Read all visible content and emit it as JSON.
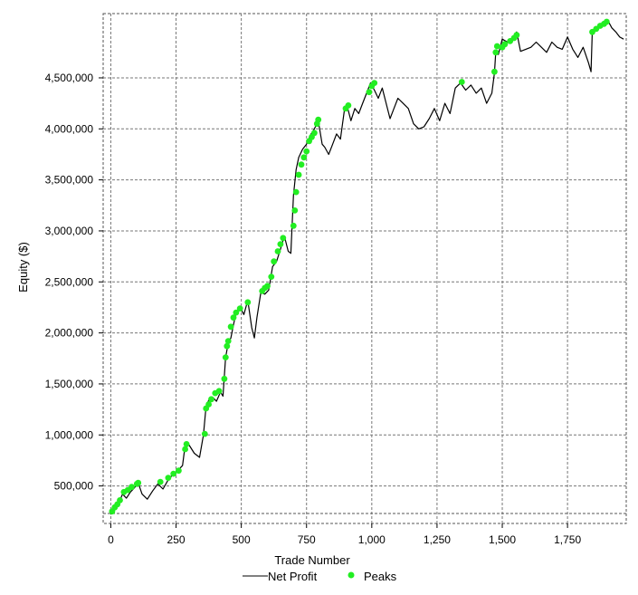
{
  "chart_data": {
    "type": "line",
    "xlabel": "Trade Number",
    "ylabel": "Equity ($)",
    "xlim": [
      -5,
      1975
    ],
    "ylim": [
      230000,
      5130000
    ],
    "x_ticks": [
      0,
      250,
      500,
      750,
      1000,
      1250,
      1500,
      1750
    ],
    "x_tick_labels": [
      "0",
      "250",
      "500",
      "750",
      "1,000",
      "1,250",
      "1,500",
      "1,750"
    ],
    "y_ticks": [
      500000,
      1000000,
      1500000,
      2000000,
      2500000,
      3000000,
      3500000,
      4000000,
      4500000
    ],
    "y_tick_labels": [
      "500,000",
      "1,000,000",
      "1,500,000",
      "2,000,000",
      "2,500,000",
      "3,000,000",
      "3,500,000",
      "4,000,000",
      "4,500,000"
    ],
    "grid": true,
    "legend_position": "bottom",
    "series": [
      {
        "name": "Net Profit",
        "type": "line",
        "color": "#000000",
        "x": [
          0,
          15,
          30,
          45,
          60,
          75,
          90,
          105,
          120,
          140,
          160,
          180,
          200,
          220,
          240,
          260,
          275,
          285,
          300,
          320,
          340,
          355,
          365,
          375,
          390,
          405,
          420,
          430,
          440,
          450,
          460,
          470,
          480,
          495,
          510,
          525,
          540,
          550,
          560,
          575,
          590,
          605,
          620,
          635,
          650,
          665,
          680,
          690,
          700,
          710,
          720,
          735,
          750,
          765,
          780,
          795,
          810,
          820,
          835,
          850,
          865,
          880,
          895,
          905,
          920,
          935,
          950,
          965,
          980,
          995,
          1010,
          1025,
          1040,
          1055,
          1070,
          1085,
          1100,
          1120,
          1140,
          1160,
          1180,
          1200,
          1220,
          1240,
          1260,
          1280,
          1300,
          1320,
          1340,
          1360,
          1380,
          1400,
          1420,
          1440,
          1460,
          1470,
          1475,
          1485,
          1500,
          1520,
          1540,
          1555,
          1570,
          1590,
          1610,
          1630,
          1650,
          1670,
          1690,
          1710,
          1730,
          1750,
          1770,
          1790,
          1810,
          1830,
          1840,
          1845,
          1860,
          1875,
          1890,
          1905,
          1920,
          1935,
          1950,
          1965
        ],
        "y": [
          220000,
          300000,
          330000,
          420000,
          380000,
          440000,
          480000,
          530000,
          420000,
          370000,
          450000,
          520000,
          470000,
          560000,
          620000,
          660000,
          700000,
          900000,
          900000,
          820000,
          780000,
          1000000,
          1280000,
          1340000,
          1370000,
          1330000,
          1420000,
          1380000,
          1760000,
          1900000,
          1950000,
          2080000,
          2200000,
          2250000,
          2180000,
          2320000,
          2050000,
          1950000,
          2150000,
          2400000,
          2380000,
          2420000,
          2650000,
          2700000,
          2820000,
          2950000,
          2800000,
          2780000,
          3350000,
          3600000,
          3720000,
          3800000,
          3850000,
          3940000,
          4000000,
          4080000,
          3850000,
          3820000,
          3750000,
          3850000,
          3950000,
          3900000,
          4180000,
          4230000,
          4080000,
          4200000,
          4150000,
          4250000,
          4350000,
          4450000,
          4380000,
          4300000,
          4400000,
          4250000,
          4100000,
          4200000,
          4300000,
          4250000,
          4200000,
          4050000,
          4000000,
          4020000,
          4100000,
          4200000,
          4080000,
          4250000,
          4150000,
          4400000,
          4450000,
          4380000,
          4430000,
          4350000,
          4400000,
          4250000,
          4350000,
          4550000,
          4750000,
          4730000,
          4880000,
          4850000,
          4900000,
          4950000,
          4760000,
          4780000,
          4800000,
          4850000,
          4800000,
          4750000,
          4850000,
          4800000,
          4780000,
          4900000,
          4780000,
          4700000,
          4800000,
          4650000,
          4560000,
          4960000,
          4990000,
          5020000,
          5050000,
          5060000,
          4990000,
          4950000,
          4900000,
          4880000
        ]
      },
      {
        "name": "Peaks",
        "type": "scatter",
        "color": "#22ee22",
        "x": [
          5,
          15,
          25,
          35,
          50,
          65,
          80,
          100,
          105,
          190,
          220,
          240,
          260,
          285,
          290,
          360,
          365,
          375,
          385,
          400,
          415,
          435,
          440,
          445,
          450,
          460,
          470,
          480,
          495,
          525,
          580,
          590,
          600,
          615,
          625,
          640,
          650,
          660,
          700,
          705,
          710,
          720,
          730,
          740,
          750,
          760,
          770,
          780,
          790,
          795,
          900,
          910,
          990,
          1000,
          1010,
          1345,
          1470,
          1475,
          1480,
          1500,
          1510,
          1530,
          1545,
          1555,
          1845,
          1860,
          1875,
          1890,
          1900
        ],
        "y": [
          250000,
          290000,
          320000,
          360000,
          440000,
          460000,
          490000,
          520000,
          530000,
          540000,
          580000,
          620000,
          650000,
          860000,
          910000,
          1010000,
          1260000,
          1300000,
          1350000,
          1410000,
          1430000,
          1550000,
          1760000,
          1870000,
          1920000,
          2060000,
          2150000,
          2200000,
          2240000,
          2300000,
          2410000,
          2440000,
          2460000,
          2550000,
          2700000,
          2800000,
          2870000,
          2930000,
          3050000,
          3200000,
          3380000,
          3550000,
          3650000,
          3720000,
          3780000,
          3880000,
          3920000,
          3960000,
          4050000,
          4090000,
          4200000,
          4230000,
          4360000,
          4420000,
          4450000,
          4460000,
          4560000,
          4750000,
          4810000,
          4800000,
          4830000,
          4860000,
          4890000,
          4920000,
          4950000,
          4980000,
          5010000,
          5030000,
          5050000
        ]
      }
    ]
  }
}
